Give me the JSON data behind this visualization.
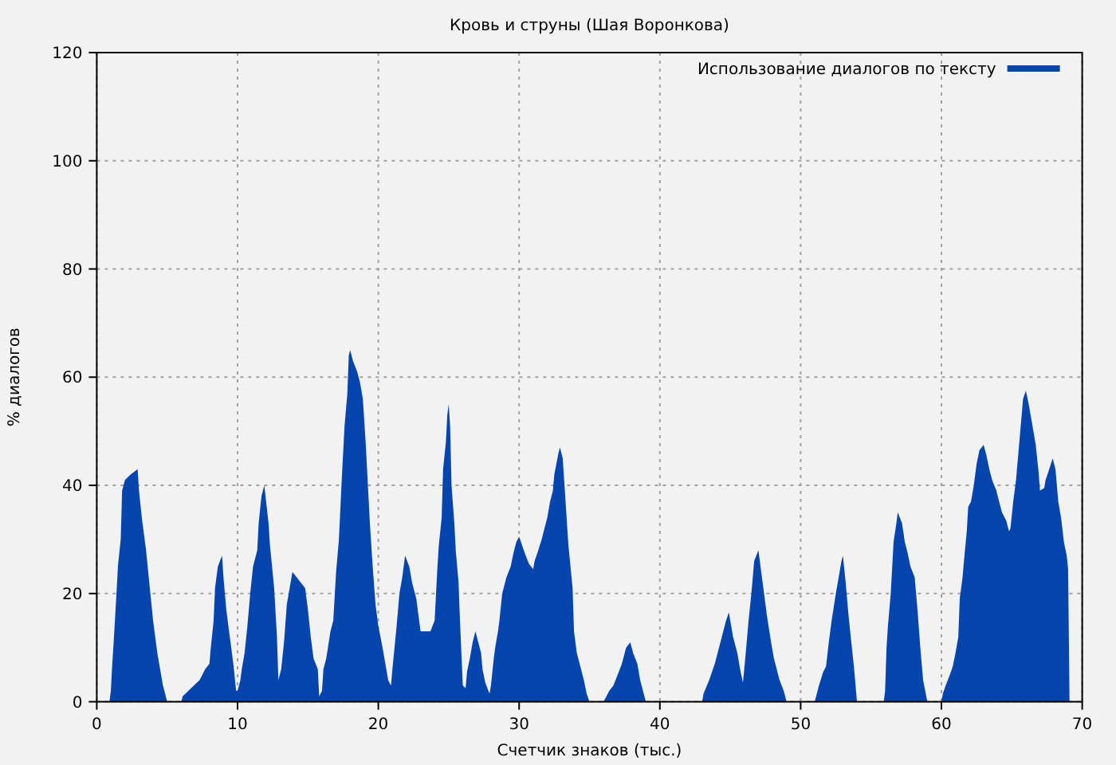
{
  "chart_data": {
    "type": "area",
    "title": "Кровь и струны (Шая Воронкова)",
    "xlabel": "Счетчик знаков (тыс.)",
    "ylabel": "% диалогов",
    "xlim": [
      0,
      70
    ],
    "xticks": [
      0,
      10,
      20,
      30,
      40,
      50,
      60,
      70
    ],
    "ylim": [
      0,
      120
    ],
    "yticks": [
      0,
      20,
      40,
      60,
      80,
      100,
      120
    ],
    "grid": true,
    "legend": "top right",
    "series": [
      {
        "name": "Использование диалогов по тексту",
        "color": "#0645ad",
        "x": [
          0.9,
          1.0,
          1.1,
          1.2,
          1.4,
          1.5,
          1.7,
          1.8,
          2.0,
          2.4,
          2.9,
          3.0,
          3.2,
          3.5,
          4.0,
          4.3,
          4.5,
          4.7,
          5.0,
          6.0,
          6.1,
          6.5,
          6.9,
          7.3,
          7.7,
          8.0,
          8.1,
          8.3,
          8.4,
          8.6,
          8.9,
          9.0,
          9.2,
          9.5,
          9.7,
          9.9,
          10.0,
          10.2,
          10.3,
          10.5,
          10.7,
          10.9,
          11.1,
          11.4,
          11.5,
          11.7,
          11.9,
          12.2,
          12.3,
          12.6,
          12.8,
          12.9,
          13.1,
          13.3,
          13.5,
          13.7,
          13.9,
          14.2,
          14.5,
          14.8,
          15.0,
          15.2,
          15.4,
          15.7,
          15.8,
          16.0,
          16.1,
          16.3,
          16.6,
          16.8,
          17.0,
          17.2,
          17.4,
          17.6,
          17.8,
          17.9,
          18.0,
          18.2,
          18.5,
          18.7,
          18.9,
          19.1,
          19.4,
          19.6,
          19.8,
          20.0,
          20.3,
          20.5,
          20.7,
          20.9,
          21.0,
          21.3,
          21.5,
          21.7,
          21.9,
          22.2,
          22.4,
          22.7,
          22.9,
          23.0,
          23.7,
          24.0,
          24.2,
          24.3,
          24.5,
          24.6,
          24.8,
          24.9,
          25.0,
          25.1,
          25.2,
          25.4,
          25.5,
          25.7,
          25.8,
          25.9,
          26.0,
          26.2,
          26.3,
          26.5,
          26.7,
          26.9,
          27.1,
          27.3,
          27.4,
          27.6,
          27.9,
          28.0,
          28.2,
          28.3,
          28.5,
          28.6,
          28.8,
          28.9,
          29.1,
          29.4,
          29.6,
          29.8,
          30.0,
          30.2,
          30.4,
          30.7,
          31.0,
          31.1,
          31.3,
          31.6,
          31.8,
          32.0,
          32.2,
          32.4,
          32.5,
          32.8,
          32.9,
          33.1,
          33.3,
          33.5,
          33.8,
          33.9,
          34.1,
          34.4,
          34.6,
          34.8,
          35.0,
          36.0,
          36.1,
          36.4,
          36.7,
          37.0,
          37.3,
          37.6,
          37.9,
          38.1,
          38.4,
          38.6,
          38.8,
          39.0,
          43.0,
          43.1,
          43.5,
          43.9,
          44.3,
          44.7,
          44.9,
          45.2,
          45.5,
          45.7,
          45.9,
          46.1,
          46.3,
          46.5,
          46.7,
          47.0,
          47.2,
          47.4,
          47.6,
          47.9,
          48.1,
          48.3,
          48.5,
          48.8,
          49.0,
          51.0,
          51.3,
          51.6,
          51.8,
          52.0,
          52.2,
          52.5,
          52.7,
          52.9,
          53.0,
          53.2,
          53.4,
          53.6,
          53.8,
          54.0,
          55.9,
          56.0,
          56.1,
          56.2,
          56.4,
          56.6,
          56.8,
          56.9,
          57.2,
          57.4,
          57.6,
          57.8,
          58.1,
          58.3,
          58.5,
          58.7,
          59.0,
          60.0,
          60.1,
          60.3,
          60.6,
          60.8,
          61.0,
          61.2,
          61.3,
          61.5,
          61.6,
          61.8,
          61.9,
          62.1,
          62.3,
          62.5,
          62.7,
          63.0,
          63.2,
          63.4,
          63.6,
          63.9,
          64.1,
          64.3,
          64.6,
          64.8,
          64.9,
          65.1,
          65.3,
          65.5,
          65.7,
          65.8,
          66.0,
          66.2,
          66.4,
          66.7,
          66.9,
          67.0,
          67.3,
          67.4,
          67.6,
          67.9,
          68.1,
          68.3,
          68.5,
          68.7,
          68.9,
          69.0,
          69.1
        ],
        "values": [
          0,
          2,
          7,
          11,
          20,
          25,
          30,
          39,
          41,
          42,
          43,
          39,
          34,
          28,
          15,
          9,
          6,
          3,
          0,
          0,
          1,
          2,
          3,
          4,
          6,
          7,
          10,
          15,
          21,
          25,
          27,
          23,
          17,
          11,
          7,
          2,
          2,
          4,
          6,
          9,
          14,
          20,
          25,
          28,
          33,
          38,
          40,
          33,
          29,
          21,
          12,
          4,
          6,
          11,
          18,
          21,
          24,
          23,
          22,
          21,
          17,
          12,
          8,
          6,
          1,
          2,
          6,
          8,
          13,
          15,
          24,
          30,
          41,
          51,
          57,
          64,
          65,
          63,
          61,
          59,
          56,
          48,
          33,
          25,
          18,
          14,
          10,
          7,
          4,
          3,
          6,
          14,
          20,
          23,
          27,
          25,
          22,
          19,
          15,
          13,
          13,
          15,
          25,
          29,
          34,
          43,
          48,
          53,
          55,
          51,
          40,
          33,
          28,
          22,
          15,
          9,
          3,
          2.5,
          5.5,
          8,
          11,
          13,
          11,
          9,
          6,
          3.5,
          1.5,
          3,
          8,
          10,
          13,
          15,
          20,
          21,
          23,
          25,
          27.5,
          29.5,
          30.5,
          29,
          27.5,
          25.5,
          24.5,
          26,
          27.5,
          30,
          32,
          34,
          37,
          39,
          42,
          46,
          47,
          45,
          37,
          29,
          21,
          13,
          9,
          6,
          4,
          1.5,
          0,
          0,
          0.5,
          2,
          3,
          5,
          7,
          10,
          11,
          9,
          7,
          4,
          2,
          0,
          0,
          1.5,
          4,
          7,
          11,
          15,
          16.5,
          12,
          9,
          6,
          3.5,
          9,
          15,
          20,
          26,
          28,
          24,
          20,
          16,
          11,
          8,
          6,
          4,
          2,
          0,
          0,
          3,
          5.5,
          6.5,
          11,
          15,
          20,
          23,
          26,
          27,
          22,
          16,
          11,
          6,
          0,
          0,
          2,
          10,
          14,
          20,
          29.5,
          33,
          35,
          33,
          29.5,
          27.5,
          25,
          23,
          17,
          10,
          4,
          0,
          0,
          1.5,
          3,
          5,
          6.5,
          9,
          12,
          19,
          23,
          26,
          31.5,
          36,
          37,
          40,
          44,
          46.5,
          47.5,
          45.5,
          43,
          41,
          39,
          37,
          35,
          33.5,
          31.5,
          32,
          37,
          41,
          47,
          53,
          56,
          57.5,
          55,
          52,
          47.5,
          42.5,
          39,
          39.5,
          41,
          42.5,
          45,
          43,
          37,
          34,
          29.5,
          27,
          24.5,
          0
        ]
      }
    ]
  }
}
